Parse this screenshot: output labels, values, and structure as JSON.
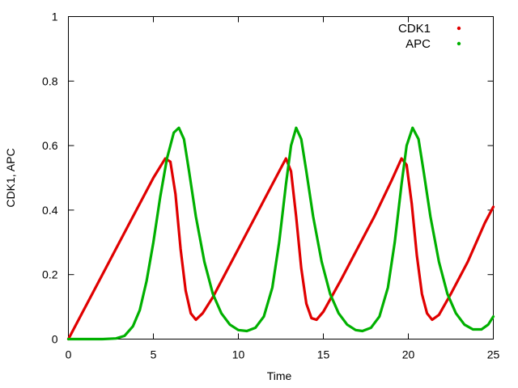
{
  "chart_data": {
    "type": "line",
    "title": "",
    "xlabel": "Time",
    "ylabel": "CDK1, APC",
    "xlim": [
      0,
      25
    ],
    "ylim": [
      0,
      1
    ],
    "xticks": [
      "0",
      "5",
      "10",
      "15",
      "20",
      "25"
    ],
    "yticks": [
      "0",
      "0.2",
      "0.4",
      "0.6",
      "0.8",
      "1"
    ],
    "grid": false,
    "legend_position": "top-right",
    "series": [
      {
        "name": "CDK1",
        "color": "#e00000",
        "points": [
          [
            0,
            0.0
          ],
          [
            1,
            0.1
          ],
          [
            2,
            0.2
          ],
          [
            3,
            0.3
          ],
          [
            4,
            0.4
          ],
          [
            5,
            0.5
          ],
          [
            5.7,
            0.56
          ],
          [
            6.0,
            0.55
          ],
          [
            6.3,
            0.45
          ],
          [
            6.6,
            0.28
          ],
          [
            6.9,
            0.15
          ],
          [
            7.2,
            0.08
          ],
          [
            7.5,
            0.06
          ],
          [
            7.9,
            0.08
          ],
          [
            8.5,
            0.13
          ],
          [
            9.5,
            0.23
          ],
          [
            10.5,
            0.33
          ],
          [
            11.5,
            0.43
          ],
          [
            12.5,
            0.53
          ],
          [
            12.8,
            0.56
          ],
          [
            13.1,
            0.52
          ],
          [
            13.4,
            0.38
          ],
          [
            13.7,
            0.22
          ],
          [
            14.0,
            0.11
          ],
          [
            14.3,
            0.065
          ],
          [
            14.6,
            0.06
          ],
          [
            15.0,
            0.085
          ],
          [
            16.0,
            0.18
          ],
          [
            17.0,
            0.28
          ],
          [
            18.0,
            0.38
          ],
          [
            19.0,
            0.49
          ],
          [
            19.6,
            0.56
          ],
          [
            19.9,
            0.54
          ],
          [
            20.2,
            0.42
          ],
          [
            20.5,
            0.26
          ],
          [
            20.8,
            0.14
          ],
          [
            21.1,
            0.08
          ],
          [
            21.4,
            0.06
          ],
          [
            21.8,
            0.075
          ],
          [
            22.5,
            0.14
          ],
          [
            23.5,
            0.24
          ],
          [
            24.5,
            0.36
          ],
          [
            25,
            0.41
          ]
        ]
      },
      {
        "name": "APC",
        "color": "#00b000",
        "points": [
          [
            0,
            0.0
          ],
          [
            1,
            0.0
          ],
          [
            2,
            0.0
          ],
          [
            2.8,
            0.002
          ],
          [
            3.3,
            0.01
          ],
          [
            3.8,
            0.04
          ],
          [
            4.2,
            0.09
          ],
          [
            4.6,
            0.18
          ],
          [
            5.0,
            0.3
          ],
          [
            5.4,
            0.44
          ],
          [
            5.8,
            0.56
          ],
          [
            6.2,
            0.64
          ],
          [
            6.5,
            0.655
          ],
          [
            6.8,
            0.62
          ],
          [
            7.1,
            0.52
          ],
          [
            7.5,
            0.38
          ],
          [
            8.0,
            0.24
          ],
          [
            8.5,
            0.14
          ],
          [
            9.0,
            0.08
          ],
          [
            9.5,
            0.045
          ],
          [
            10.0,
            0.028
          ],
          [
            10.5,
            0.025
          ],
          [
            11.0,
            0.035
          ],
          [
            11.5,
            0.07
          ],
          [
            12.0,
            0.16
          ],
          [
            12.4,
            0.3
          ],
          [
            12.8,
            0.48
          ],
          [
            13.1,
            0.6
          ],
          [
            13.4,
            0.655
          ],
          [
            13.7,
            0.62
          ],
          [
            14.0,
            0.52
          ],
          [
            14.4,
            0.38
          ],
          [
            14.9,
            0.24
          ],
          [
            15.4,
            0.14
          ],
          [
            15.9,
            0.08
          ],
          [
            16.4,
            0.045
          ],
          [
            16.9,
            0.028
          ],
          [
            17.3,
            0.025
          ],
          [
            17.8,
            0.035
          ],
          [
            18.3,
            0.07
          ],
          [
            18.8,
            0.16
          ],
          [
            19.2,
            0.3
          ],
          [
            19.6,
            0.48
          ],
          [
            19.9,
            0.6
          ],
          [
            20.25,
            0.655
          ],
          [
            20.6,
            0.62
          ],
          [
            20.9,
            0.52
          ],
          [
            21.3,
            0.38
          ],
          [
            21.8,
            0.24
          ],
          [
            22.3,
            0.14
          ],
          [
            22.8,
            0.08
          ],
          [
            23.3,
            0.045
          ],
          [
            23.8,
            0.03
          ],
          [
            24.3,
            0.03
          ],
          [
            24.7,
            0.045
          ],
          [
            25,
            0.07
          ]
        ]
      }
    ]
  }
}
